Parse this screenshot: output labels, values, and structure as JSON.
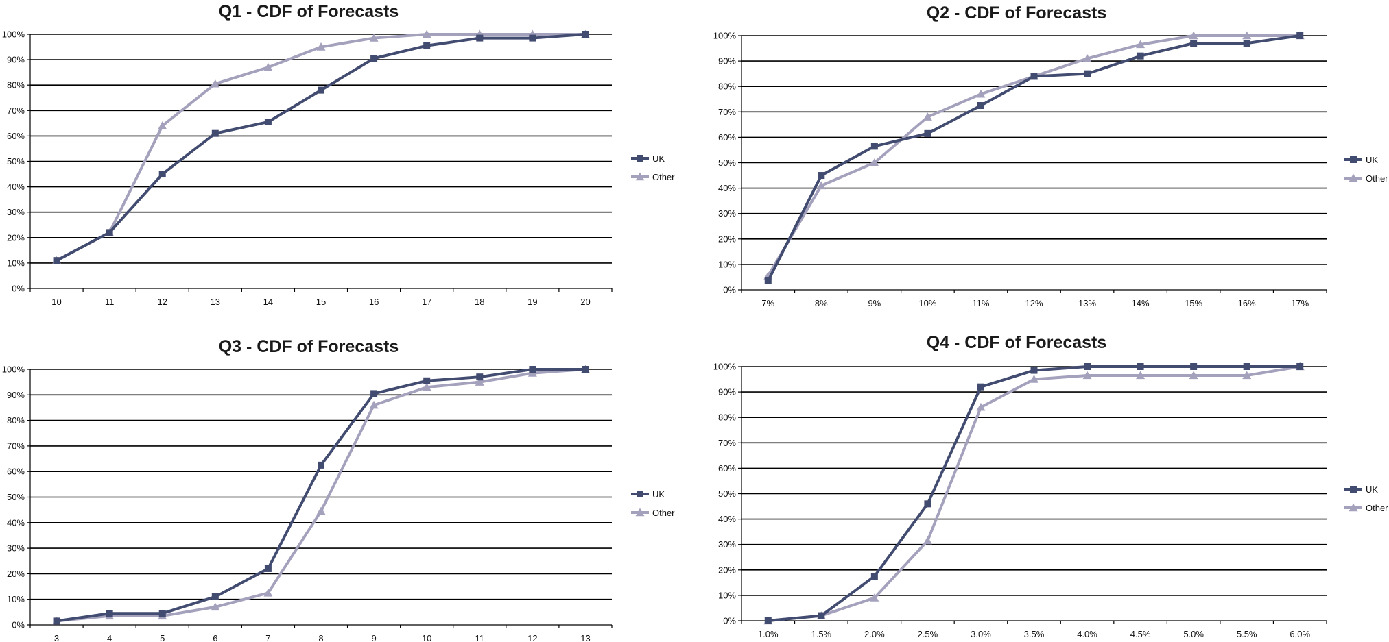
{
  "colors": {
    "uk": "#424b70",
    "other": "#a4a1bd"
  },
  "chart_data": [
    {
      "type": "line",
      "title": "Q1 - CDF of Forecasts",
      "categories": [
        "10",
        "11",
        "12",
        "13",
        "14",
        "15",
        "16",
        "17",
        "18",
        "19",
        "20"
      ],
      "y_ticks": [
        "0%",
        "10%",
        "20%",
        "30%",
        "40%",
        "50%",
        "60%",
        "70%",
        "80%",
        "90%",
        "100%"
      ],
      "ylim": [
        0,
        100
      ],
      "grid": true,
      "legend_position": "right",
      "series": [
        {
          "name": "UK",
          "marker": "square",
          "values": [
            11,
            22,
            45,
            61,
            65.5,
            78,
            90.5,
            95.5,
            98.5,
            98.5,
            100
          ]
        },
        {
          "name": "Other",
          "marker": "triangle",
          "values": [
            11,
            22,
            64,
            80.5,
            87,
            95,
            98.5,
            100,
            100,
            100,
            100
          ]
        }
      ]
    },
    {
      "type": "line",
      "title": "Q2 - CDF of Forecasts",
      "categories": [
        "7%",
        "8%",
        "9%",
        "10%",
        "11%",
        "12%",
        "13%",
        "14%",
        "15%",
        "16%",
        "17%"
      ],
      "y_ticks": [
        "0%",
        "10%",
        "20%",
        "30%",
        "40%",
        "50%",
        "60%",
        "70%",
        "80%",
        "90%",
        "100%"
      ],
      "ylim": [
        0,
        100
      ],
      "grid": true,
      "legend_position": "right",
      "series": [
        {
          "name": "UK",
          "marker": "square",
          "values": [
            3.5,
            45,
            56.5,
            61.5,
            72.5,
            84,
            85,
            92,
            97,
            97,
            100
          ]
        },
        {
          "name": "Other",
          "marker": "triangle",
          "values": [
            5.5,
            41,
            50,
            68,
            77,
            84,
            91,
            96.5,
            100,
            100,
            100
          ]
        }
      ]
    },
    {
      "type": "line",
      "title": "Q3 - CDF of Forecasts",
      "categories": [
        "3",
        "4",
        "5",
        "6",
        "7",
        "8",
        "9",
        "10",
        "11",
        "12",
        "13"
      ],
      "y_ticks": [
        "0%",
        "10%",
        "20%",
        "30%",
        "40%",
        "50%",
        "60%",
        "70%",
        "80%",
        "90%",
        "100%"
      ],
      "ylim": [
        0,
        100
      ],
      "grid": true,
      "legend_position": "right",
      "series": [
        {
          "name": "UK",
          "marker": "square",
          "values": [
            1.5,
            4.5,
            4.5,
            11,
            22,
            62.5,
            90.5,
            95.5,
            97,
            100,
            100
          ]
        },
        {
          "name": "Other",
          "marker": "triangle",
          "values": [
            1.5,
            3.5,
            3.5,
            7,
            12.5,
            44.5,
            86,
            93,
            95,
            98.5,
            100
          ]
        }
      ]
    },
    {
      "type": "line",
      "title": "Q4 - CDF of Forecasts",
      "categories": [
        "1.0%",
        "1.5%",
        "2.0%",
        "2.5%",
        "3.0%",
        "3.5%",
        "4.0%",
        "4.5%",
        "5.0%",
        "5.5%",
        "6.0%"
      ],
      "y_ticks": [
        "0%",
        "10%",
        "20%",
        "30%",
        "40%",
        "50%",
        "60%",
        "70%",
        "80%",
        "90%",
        "100%"
      ],
      "ylim": [
        0,
        100
      ],
      "grid": true,
      "legend_position": "right",
      "series": [
        {
          "name": "UK",
          "marker": "square",
          "values": [
            0,
            2,
            17.5,
            46,
            92,
            98.5,
            100,
            100,
            100,
            100,
            100
          ]
        },
        {
          "name": "Other",
          "marker": "triangle",
          "values": [
            0,
            2,
            9,
            31.5,
            84,
            95,
            96.5,
            96.5,
            96.5,
            96.5,
            100
          ]
        }
      ]
    }
  ]
}
